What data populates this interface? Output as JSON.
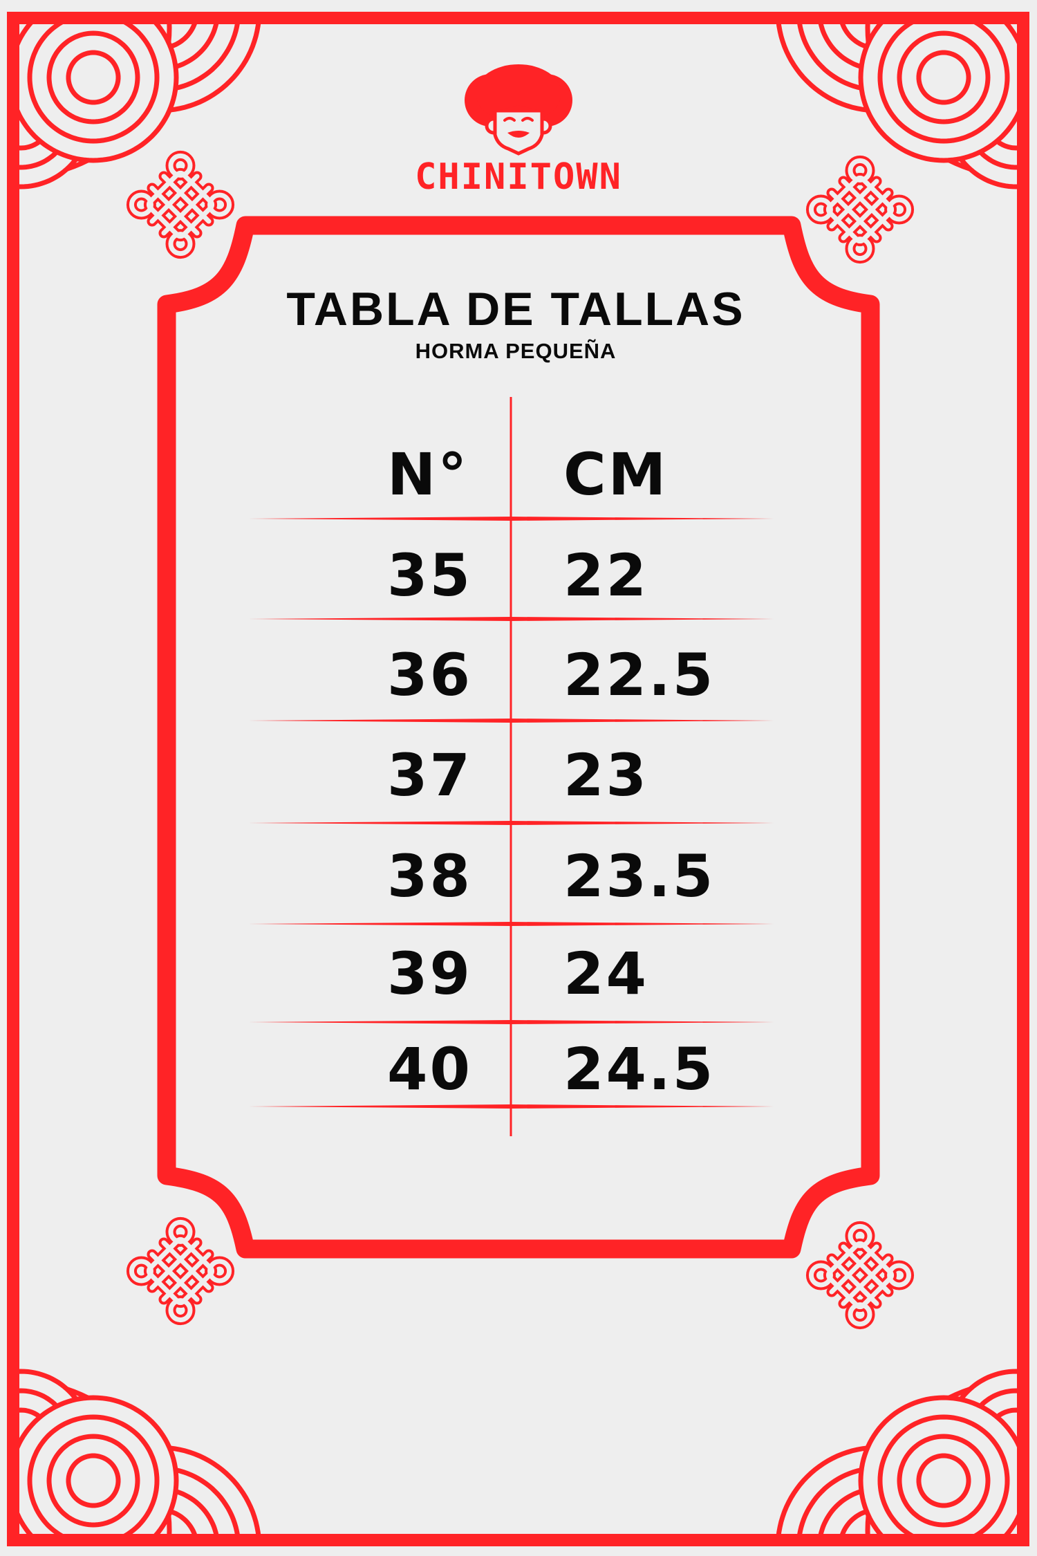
{
  "brand": {
    "name": "CHINITOWN",
    "accent_color": "#ff2326",
    "background_color": "#eeeeee"
  },
  "title": "TABLA DE TALLAS",
  "subtitle": "HORMA PEQUEÑA",
  "table": {
    "headers": [
      "N°",
      "CM"
    ],
    "rows": [
      {
        "size": "35",
        "cm": "22"
      },
      {
        "size": "36",
        "cm": "22.5"
      },
      {
        "size": "37",
        "cm": "23"
      },
      {
        "size": "38",
        "cm": "23.5"
      },
      {
        "size": "39",
        "cm": "24"
      },
      {
        "size": "40",
        "cm": "24.5"
      }
    ]
  },
  "decorations": {
    "corner_pattern": "wave-arcs-icon",
    "knot": "endless-knot-icon",
    "logo": "girl-face-logo-icon"
  }
}
